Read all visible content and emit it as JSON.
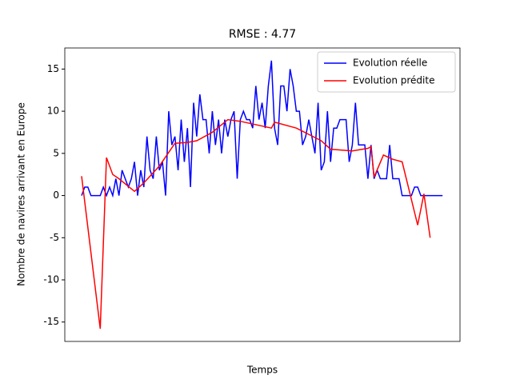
{
  "chart_data": {
    "type": "line",
    "title": "RMSE : 4.77",
    "xlabel": "Temps",
    "ylabel": "Nombre de navires arrivant en Europe",
    "xlim": [
      -5.4,
      121.6
    ],
    "ylim": [
      -17.3,
      17.5
    ],
    "yticks": [
      -15,
      -10,
      -5,
      0,
      5,
      10,
      15
    ],
    "legend": "upper right",
    "series": [
      {
        "name": "Evolution réelle",
        "color": "#0000ff",
        "values": [
          0,
          1,
          1,
          0,
          0,
          0,
          0,
          1,
          0,
          1,
          0,
          2,
          0,
          3,
          2,
          1,
          2,
          4,
          0,
          3,
          1,
          7,
          3,
          2,
          7,
          3,
          4,
          0,
          10,
          6,
          7,
          3,
          9,
          4,
          8,
          1,
          11,
          7,
          12,
          9,
          9,
          5,
          10,
          6,
          9,
          5,
          9,
          7,
          9,
          10,
          2,
          9,
          10,
          9,
          9,
          8,
          13,
          9,
          11,
          8,
          13,
          16,
          8,
          6,
          13,
          13,
          10,
          15,
          13,
          10,
          10,
          6,
          7,
          9,
          7,
          5,
          11,
          3,
          4,
          10,
          4,
          8,
          8,
          9,
          9,
          9,
          4,
          6,
          11,
          6,
          6,
          6,
          2,
          6,
          2,
          3,
          2,
          2,
          2,
          6,
          2,
          2,
          2,
          0,
          0,
          0,
          0,
          1,
          1,
          0,
          0,
          0,
          0,
          0,
          0,
          0,
          0
        ]
      },
      {
        "name": "Evolution prédite",
        "color": "#ff0000",
        "x": [
          0,
          6,
          8,
          10,
          12,
          17,
          20,
          25,
          30,
          34,
          37,
          42,
          47,
          51,
          61,
          62,
          69,
          77,
          80,
          87,
          92,
          93,
          94,
          97,
          100,
          103,
          108,
          110,
          112
        ],
        "values": [
          2.3,
          -15.8,
          4.5,
          2.5,
          2,
          0.5,
          1.5,
          3.5,
          6.2,
          6.3,
          6.5,
          7.5,
          9,
          8.8,
          8,
          8.7,
          8,
          6.5,
          5.5,
          5.3,
          5.6,
          5.8,
          2.2,
          4.8,
          4.3,
          4,
          -3.5,
          0.2,
          -5
        ]
      }
    ]
  }
}
